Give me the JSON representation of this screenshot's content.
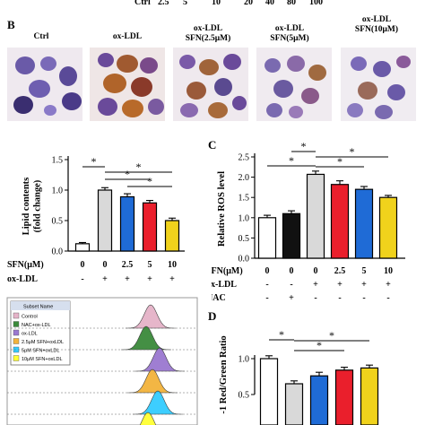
{
  "top_strip": [
    "Ctrl",
    "2.5",
    "5",
    "10",
    "20",
    "40",
    "80",
    "100"
  ],
  "panel_b": {
    "letter": "B",
    "columns": [
      {
        "line1": "Ctrl",
        "line2": ""
      },
      {
        "line1": "ox-LDL",
        "line2": ""
      },
      {
        "line1": "ox-LDL",
        "line2": "SFN(2.5μM)"
      },
      {
        "line1": "ox-LDL",
        "line2": "SFN(5μM)"
      },
      {
        "line1": "ox-LDL",
        "line2": "SFN(10μM)"
      }
    ]
  },
  "panel_c": {
    "letter": "C"
  },
  "panel_d": {
    "letter": "D"
  },
  "chart_data": [
    {
      "type": "bar",
      "ylabel_line1": "Lipid contents",
      "ylabel_line2": "(fold change)",
      "ylim": [
        0,
        1.5
      ],
      "yticks": [
        "0.0",
        "0.5",
        "1.0",
        "1.5"
      ],
      "values": [
        0.12,
        1.0,
        0.89,
        0.79,
        0.5
      ],
      "errors": [
        0.02,
        0.04,
        0.05,
        0.04,
        0.04
      ],
      "colors": [
        "#ffffff",
        "#d9d9d9",
        "#1f6bd6",
        "#ea1f2c",
        "#f0d21c"
      ],
      "row_labels": [
        "SFN(μM)",
        "ox-LDL"
      ],
      "rows": [
        [
          "0",
          "0",
          "2.5",
          "5",
          "10"
        ],
        [
          "-",
          "+",
          "+",
          "+",
          "+"
        ]
      ],
      "significance": [
        "*",
        "*",
        "*",
        "*"
      ]
    },
    {
      "type": "bar",
      "ylabel": "Relative ROS level",
      "ylim": [
        0,
        2.5
      ],
      "yticks": [
        "0.0",
        "0.5",
        "1.0",
        "1.5",
        "2.0",
        "2.5"
      ],
      "values": [
        1.0,
        1.1,
        2.07,
        1.82,
        1.7,
        1.5
      ],
      "errors": [
        0.06,
        0.07,
        0.08,
        0.09,
        0.07,
        0.05
      ],
      "colors": [
        "#ffffff",
        "#111111",
        "#d9d9d9",
        "#ea1f2c",
        "#1f6bd6",
        "#f0d21c"
      ],
      "row_labels": [
        "SFN(μM)",
        "ox-LDL",
        "NAC"
      ],
      "rows": [
        [
          "0",
          "0",
          "0",
          "2.5",
          "5",
          "10"
        ],
        [
          "-",
          "-",
          "+",
          "+",
          "+",
          "+"
        ],
        [
          "-",
          "+",
          "-",
          "-",
          "-",
          "-"
        ]
      ],
      "significance": [
        "*",
        "*",
        "*",
        "*"
      ]
    },
    {
      "type": "bar",
      "ylabel": "-1 Red/Green Ratio",
      "ylim": [
        0.5,
        1.0
      ],
      "yticks": [
        "0.5",
        "1.0"
      ],
      "values": [
        1.0,
        0.65,
        0.76,
        0.84,
        0.87
      ],
      "errors": [
        0.04,
        0.04,
        0.05,
        0.04,
        0.04
      ],
      "colors": [
        "#ffffff",
        "#d9d9d9",
        "#1f6bd6",
        "#ea1f2c",
        "#f0d21c"
      ],
      "significance": [
        "*",
        "*",
        "*"
      ]
    },
    {
      "type": "area",
      "legend_title": "Subset Name",
      "legend": [
        "Control",
        "NAC+ox-LDL",
        "ox-LDL",
        "2.5μM SFN+oxLDL",
        "5μM SFN+oxLDL",
        "10μM SFN+oxLDL"
      ],
      "colors": [
        "#e5b3c8",
        "#3a8a3a",
        "#9a78d0",
        "#f3b33a",
        "#33ccff",
        "#ffff33"
      ]
    }
  ]
}
